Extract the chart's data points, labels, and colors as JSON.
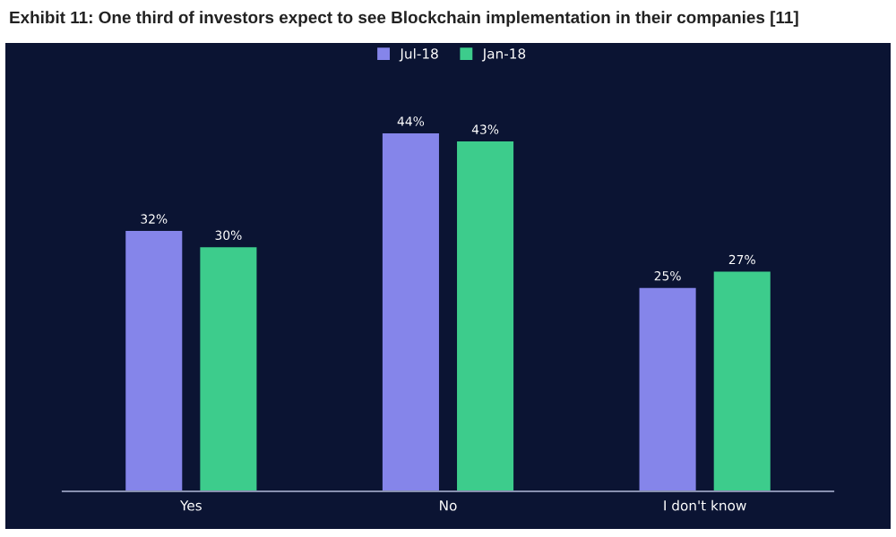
{
  "chart_data": {
    "type": "bar",
    "title": "Exhibit 11: One third of investors expect to see Blockchain implementation in their companies [11]",
    "categories": [
      "Yes",
      "No",
      "I don't know"
    ],
    "series": [
      {
        "name": "Jul-18",
        "color": "#8585ea",
        "values": [
          32,
          44,
          25
        ],
        "value_labels": [
          "32%",
          "44%",
          "25%"
        ]
      },
      {
        "name": "Jan-18",
        "color": "#3dcc8c",
        "values": [
          30,
          43,
          27
        ],
        "value_labels": [
          "30%",
          "43%",
          "27%"
        ]
      }
    ],
    "legend": "top",
    "grid": false
  }
}
